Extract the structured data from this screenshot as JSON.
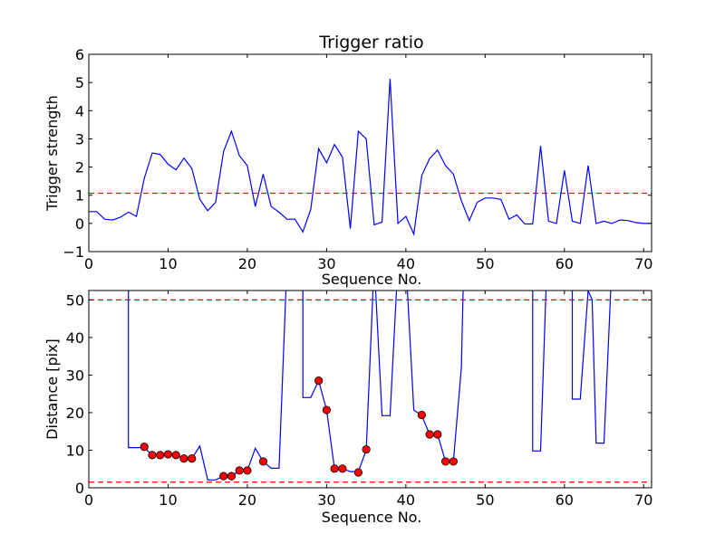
{
  "chart_data": [
    {
      "type": "line",
      "title": "Trigger ratio",
      "xlabel": "Sequence No.",
      "ylabel": "Trigger strength",
      "xlim": [
        0,
        71
      ],
      "ylim": [
        -1,
        6
      ],
      "xticks": [
        0,
        10,
        20,
        30,
        40,
        50,
        60,
        70
      ],
      "yticks": [
        -1,
        0,
        1,
        2,
        3,
        4,
        5,
        6
      ],
      "grid": false,
      "series": [
        {
          "color": "#0000ff",
          "x": [
            0,
            1,
            2,
            3,
            4,
            5,
            6,
            7,
            8,
            9,
            10,
            11,
            12,
            13,
            14,
            15,
            16,
            17,
            18,
            19,
            20,
            21,
            22,
            23,
            24,
            25,
            26,
            27,
            28,
            29,
            30,
            31,
            32,
            33,
            34,
            35,
            36,
            37,
            38,
            39,
            40,
            41,
            42,
            43,
            44,
            45,
            46,
            47,
            48,
            49,
            50,
            51,
            52,
            53,
            54,
            55,
            56,
            57,
            58,
            59,
            60,
            61,
            62,
            63,
            64,
            65,
            66,
            67,
            68,
            69,
            70,
            71
          ],
          "values": [
            0.42,
            0.42,
            0.15,
            0.12,
            0.22,
            0.4,
            0.25,
            1.6,
            2.5,
            2.45,
            2.1,
            1.9,
            2.32,
            1.95,
            0.85,
            0.45,
            0.75,
            2.55,
            3.27,
            2.4,
            2.05,
            0.6,
            1.75,
            0.6,
            0.4,
            0.15,
            0.15,
            -0.3,
            0.5,
            2.65,
            2.15,
            2.8,
            2.35,
            -0.18,
            3.27,
            3.0,
            -0.05,
            0.05,
            5.13,
            0.0,
            0.25,
            -0.38,
            1.7,
            2.3,
            2.6,
            2.05,
            1.75,
            0.8,
            0.1,
            0.75,
            0.9,
            0.9,
            0.85,
            0.15,
            0.3,
            -0.02,
            -0.02,
            2.75,
            0.08,
            0.0,
            1.88,
            0.08,
            0.0,
            2.05,
            0.0,
            0.08,
            0.0,
            0.12,
            0.1,
            0.03,
            0.0,
            0.0
          ]
        }
      ],
      "reference_lines": [
        {
          "y": 1.07,
          "color": "#ff0000",
          "style": "dashed"
        }
      ]
    },
    {
      "type": "line",
      "title": "",
      "xlabel": "Sequence No.",
      "ylabel": "Distance [pix]",
      "xlim": [
        0,
        71
      ],
      "ylim": [
        0,
        52.5
      ],
      "xticks": [
        0,
        10,
        20,
        30,
        40,
        50,
        60,
        70
      ],
      "yticks": [
        0,
        10,
        20,
        30,
        40,
        50
      ],
      "grid": false,
      "series": [
        {
          "color": "#0000ff",
          "segments": [
            [
              [
                5,
                60
              ],
              [
                5,
                10.7
              ],
              [
                6,
                10.7
              ],
              [
                7,
                10.7
              ],
              [
                8,
                8.7
              ],
              [
                9,
                8.7
              ],
              [
                10,
                8.9
              ],
              [
                11,
                8.7
              ],
              [
                12,
                7.8
              ],
              [
                13,
                7.8
              ],
              [
                14,
                11.1
              ],
              [
                15,
                2.1
              ],
              [
                16,
                2.1
              ],
              [
                17,
                3.1
              ],
              [
                18,
                3.1
              ],
              [
                19,
                4.6
              ],
              [
                20,
                4.6
              ],
              [
                21,
                10.5
              ],
              [
                22,
                7.0
              ],
              [
                23,
                5.2
              ],
              [
                24,
                5.2
              ],
              [
                25,
                60
              ]
            ],
            [
              [
                27,
                60
              ],
              [
                27,
                24.0
              ],
              [
                28,
                24.0
              ],
              [
                29,
                28.5
              ],
              [
                30,
                20.7
              ],
              [
                31,
                5.1
              ],
              [
                32,
                5.1
              ],
              [
                33,
                4.3
              ],
              [
                34,
                4.3
              ],
              [
                35,
                10.0
              ],
              [
                36,
                60
              ]
            ],
            [
              [
                36,
                60
              ],
              [
                37,
                19.2
              ],
              [
                38,
                19.2
              ],
              [
                39,
                60
              ]
            ],
            [
              [
                40,
                60
              ],
              [
                41,
                20.7
              ],
              [
                42,
                19.2
              ],
              [
                43,
                14.2
              ],
              [
                44,
                14.2
              ],
              [
                45,
                7.0
              ],
              [
                46,
                7.0
              ],
              [
                47,
                32.0
              ],
              [
                47.3,
                60
              ]
            ],
            [
              [
                56,
                60
              ],
              [
                56,
                9.8
              ],
              [
                57,
                9.8
              ],
              [
                57.8,
                60
              ]
            ],
            [
              [
                61,
                60
              ],
              [
                61,
                23.6
              ],
              [
                62,
                23.6
              ],
              [
                63,
                52.5
              ],
              [
                63.5,
                50
              ],
              [
                64,
                11.9
              ],
              [
                65,
                11.9
              ],
              [
                66,
                60
              ]
            ]
          ]
        }
      ],
      "markers": {
        "color": "#ff0000",
        "edge_color": "#000000",
        "points": [
          [
            7,
            10.9
          ],
          [
            8,
            8.7
          ],
          [
            9,
            8.7
          ],
          [
            10,
            8.9
          ],
          [
            11,
            8.7
          ],
          [
            12,
            7.8
          ],
          [
            13,
            7.8
          ],
          [
            17,
            3.1
          ],
          [
            18,
            3.1
          ],
          [
            19,
            4.6
          ],
          [
            20,
            4.6
          ],
          [
            22,
            7.0
          ],
          [
            29,
            28.5
          ],
          [
            30,
            20.7
          ],
          [
            31,
            5.1
          ],
          [
            32,
            5.1
          ],
          [
            34,
            4.1
          ],
          [
            35,
            10.2
          ],
          [
            42,
            19.4
          ],
          [
            43,
            14.2
          ],
          [
            44,
            14.2
          ],
          [
            45,
            7.0
          ],
          [
            46,
            7.0
          ]
        ]
      },
      "reference_lines": [
        {
          "y": 50.0,
          "color": "#ff0000",
          "style": "dashed"
        },
        {
          "y": 1.5,
          "color": "#ff0000",
          "style": "dashed"
        }
      ]
    }
  ]
}
